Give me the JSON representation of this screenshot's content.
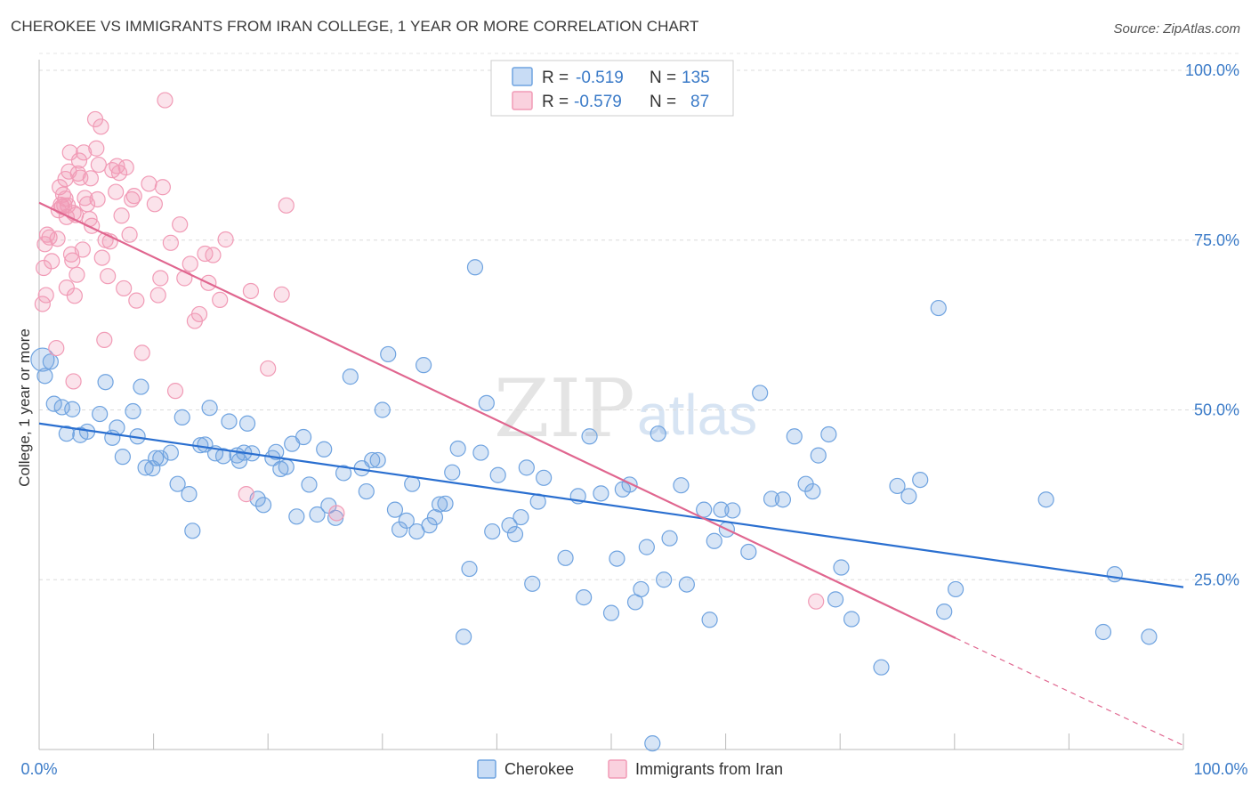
{
  "title": "CHEROKEE VS IMMIGRANTS FROM IRAN COLLEGE, 1 YEAR OR MORE CORRELATION CHART",
  "source": "Source: ZipAtlas.com",
  "watermark": {
    "zip": "ZIP",
    "atlas": "atlas"
  },
  "legend_top": [
    {
      "r_label": "R =",
      "r_value": "-0.519",
      "n_label": "N =",
      "n_value": "135"
    },
    {
      "r_label": "R =",
      "r_value": "-0.579",
      "n_label": "N =",
      "n_value": "87"
    }
  ],
  "legend_bottom": [
    "Cherokee",
    "Immigrants from Iran"
  ],
  "colors": {
    "cherokee": "#6fa3e0",
    "cherokee_line": "#2a6fd0",
    "iran": "#f19bb6",
    "iran_line": "#e0668f",
    "tick": "#3b7bc8"
  },
  "chart_data": {
    "type": "scatter",
    "title": "CHEROKEE VS IMMIGRANTS FROM IRAN COLLEGE, 1 YEAR OR MORE CORRELATION CHART",
    "xlabel": "",
    "ylabel": "College, 1 year or more",
    "xlim": [
      0,
      100
    ],
    "ylim": [
      0,
      100
    ],
    "x_tick_labels": [
      "0.0%",
      "100.0%"
    ],
    "y_ticks": [
      25,
      50,
      75,
      100
    ],
    "y_tick_labels": [
      "25.0%",
      "50.0%",
      "75.0%",
      "100.0%"
    ],
    "grid": true,
    "legend_position": "top-center",
    "series": [
      {
        "name": "Cherokee",
        "r": -0.519,
        "n": 135,
        "trend": {
          "x": [
            0,
            100
          ],
          "y": [
            48.0,
            23.9
          ]
        },
        "points": [
          [
            0.3,
            57.4
          ],
          [
            0.5,
            55
          ],
          [
            1.3,
            50.9
          ],
          [
            2,
            50.4
          ],
          [
            2.9,
            50.1
          ],
          [
            2.4,
            46.5
          ],
          [
            3.6,
            46.3
          ],
          [
            4.2,
            46.8
          ],
          [
            5.3,
            49.4
          ],
          [
            5.8,
            54.1
          ],
          [
            6.4,
            45.9
          ],
          [
            6.8,
            47.4
          ],
          [
            7.3,
            43.1
          ],
          [
            8.2,
            49.8
          ],
          [
            8.6,
            46.1
          ],
          [
            8.9,
            53.4
          ],
          [
            9.3,
            41.5
          ],
          [
            9.9,
            41.4
          ],
          [
            10.2,
            42.9
          ],
          [
            10.6,
            42.9
          ],
          [
            11.5,
            43.7
          ],
          [
            12.1,
            39.1
          ],
          [
            12.5,
            48.9
          ],
          [
            13.1,
            37.6
          ],
          [
            13.4,
            32.2
          ],
          [
            14.1,
            44.8
          ],
          [
            14.5,
            44.9
          ],
          [
            14.9,
            50.3
          ],
          [
            15.4,
            43.6
          ],
          [
            16.1,
            43.2
          ],
          [
            16.6,
            48.3
          ],
          [
            17.3,
            43.3
          ],
          [
            17.5,
            42.5
          ],
          [
            17.9,
            43.7
          ],
          [
            18.2,
            48
          ],
          [
            18.6,
            43.6
          ],
          [
            19.1,
            36.9
          ],
          [
            19.6,
            36
          ],
          [
            20.4,
            42.9
          ],
          [
            20.7,
            43.8
          ],
          [
            21.1,
            41.3
          ],
          [
            21.6,
            41.6
          ],
          [
            22.1,
            45
          ],
          [
            22.5,
            34.3
          ],
          [
            23.1,
            46
          ],
          [
            23.6,
            39
          ],
          [
            24.3,
            34.6
          ],
          [
            24.9,
            44.2
          ],
          [
            25.3,
            35.9
          ],
          [
            25.9,
            34.1
          ],
          [
            26.6,
            40.7
          ],
          [
            27.2,
            54.9
          ],
          [
            28.2,
            41.4
          ],
          [
            28.6,
            38
          ],
          [
            29.1,
            42.6
          ],
          [
            29.6,
            42.6
          ],
          [
            30,
            50
          ],
          [
            30.5,
            58.2
          ],
          [
            31.1,
            35.3
          ],
          [
            31.5,
            32.4
          ],
          [
            32.1,
            33.7
          ],
          [
            32.6,
            39.1
          ],
          [
            33,
            32.1
          ],
          [
            33.6,
            56.6
          ],
          [
            34.1,
            33
          ],
          [
            34.6,
            34.2
          ],
          [
            35,
            36.1
          ],
          [
            35.5,
            36.2
          ],
          [
            36.1,
            40.8
          ],
          [
            36.6,
            44.3
          ],
          [
            37.1,
            16.6
          ],
          [
            37.6,
            26.6
          ],
          [
            38.1,
            71
          ],
          [
            38.6,
            43.7
          ],
          [
            39.1,
            51
          ],
          [
            39.6,
            32.1
          ],
          [
            40.1,
            40.4
          ],
          [
            41.1,
            33
          ],
          [
            41.6,
            31.7
          ],
          [
            42.1,
            34.2
          ],
          [
            42.6,
            41.5
          ],
          [
            43.1,
            24.4
          ],
          [
            43.6,
            36.5
          ],
          [
            44.1,
            40
          ],
          [
            46,
            28.2
          ],
          [
            47.1,
            37.3
          ],
          [
            47.6,
            22.4
          ],
          [
            48.1,
            46.1
          ],
          [
            49.1,
            37.7
          ],
          [
            50,
            20.1
          ],
          [
            50.5,
            28.1
          ],
          [
            51,
            38.3
          ],
          [
            51.6,
            39
          ],
          [
            52.1,
            21.7
          ],
          [
            52.6,
            23.6
          ],
          [
            53.1,
            29.8
          ],
          [
            53.6,
            0.9
          ],
          [
            54.1,
            46.5
          ],
          [
            54.6,
            25
          ],
          [
            55.1,
            31.1
          ],
          [
            56.1,
            38.9
          ],
          [
            56.6,
            24.3
          ],
          [
            58.1,
            35.3
          ],
          [
            58.6,
            19.1
          ],
          [
            59,
            30.7
          ],
          [
            59.6,
            35.3
          ],
          [
            60.1,
            32.4
          ],
          [
            60.6,
            35.2
          ],
          [
            62,
            29.1
          ],
          [
            63,
            52.5
          ],
          [
            64,
            36.9
          ],
          [
            65,
            36.8
          ],
          [
            66,
            46.1
          ],
          [
            67,
            39.1
          ],
          [
            67.6,
            38
          ],
          [
            68.1,
            43.3
          ],
          [
            69,
            46.4
          ],
          [
            69.6,
            22.1
          ],
          [
            70.1,
            26.8
          ],
          [
            71,
            19.2
          ],
          [
            73.6,
            12.1
          ],
          [
            75,
            38.8
          ],
          [
            76,
            37.3
          ],
          [
            77,
            39.7
          ],
          [
            78.6,
            65
          ],
          [
            79.1,
            20.3
          ],
          [
            80.1,
            23.6
          ],
          [
            88,
            36.8
          ],
          [
            93,
            17.3
          ],
          [
            94,
            25.8
          ],
          [
            97,
            16.6
          ],
          [
            1,
            57.1
          ]
        ]
      },
      {
        "name": "Immigrants from Iran",
        "r": -0.579,
        "n": 87,
        "trend": {
          "x": [
            0,
            80.1
          ],
          "y": [
            80.5,
            16.4
          ]
        },
        "trend_dashed": {
          "x": [
            80.1,
            100
          ],
          "y": [
            16.4,
            0.6
          ]
        },
        "points": [
          [
            0.3,
            65.6
          ],
          [
            0.4,
            70.9
          ],
          [
            0.5,
            74.4
          ],
          [
            0.6,
            66.9
          ],
          [
            0.7,
            75.8
          ],
          [
            0.9,
            75.4
          ],
          [
            1.1,
            71.9
          ],
          [
            1.5,
            59.1
          ],
          [
            1.6,
            75.2
          ],
          [
            1.7,
            79.4
          ],
          [
            1.8,
            82.8
          ],
          [
            2,
            79.9
          ],
          [
            2.1,
            81.7
          ],
          [
            2.2,
            80.1
          ],
          [
            2.3,
            84
          ],
          [
            2.4,
            68
          ],
          [
            2.5,
            80.1
          ],
          [
            2.6,
            85.1
          ],
          [
            2.7,
            87.9
          ],
          [
            2.8,
            72.9
          ],
          [
            2.9,
            72
          ],
          [
            3,
            54.2
          ],
          [
            3.1,
            66.8
          ],
          [
            3.2,
            78.7
          ],
          [
            3.3,
            69.9
          ],
          [
            3.4,
            84.8
          ],
          [
            3.5,
            86.7
          ],
          [
            3.6,
            84.2
          ],
          [
            3.8,
            73.6
          ],
          [
            3.9,
            87.9
          ],
          [
            4,
            81.2
          ],
          [
            4.2,
            80.3
          ],
          [
            4.4,
            78.1
          ],
          [
            4.5,
            84.1
          ],
          [
            4.6,
            77.1
          ],
          [
            4.9,
            92.8
          ],
          [
            5,
            88.5
          ],
          [
            5.1,
            81
          ],
          [
            5.2,
            86.1
          ],
          [
            5.4,
            91.7
          ],
          [
            5.5,
            72.4
          ],
          [
            5.7,
            60.3
          ],
          [
            5.8,
            75
          ],
          [
            6,
            69.7
          ],
          [
            6.2,
            74.8
          ],
          [
            6.4,
            85.3
          ],
          [
            6.7,
            82.1
          ],
          [
            6.8,
            85.9
          ],
          [
            7,
            84.9
          ],
          [
            7.2,
            78.6
          ],
          [
            7.4,
            67.9
          ],
          [
            7.6,
            85.7
          ],
          [
            7.9,
            75.8
          ],
          [
            8.1,
            81
          ],
          [
            8.3,
            81.5
          ],
          [
            8.5,
            66.1
          ],
          [
            9,
            58.4
          ],
          [
            9.6,
            83.3
          ],
          [
            10.1,
            80.3
          ],
          [
            10.4,
            66.9
          ],
          [
            10.6,
            69.4
          ],
          [
            10.8,
            82.8
          ],
          [
            11,
            95.6
          ],
          [
            11.5,
            74.6
          ],
          [
            11.9,
            52.8
          ],
          [
            12.3,
            77.3
          ],
          [
            12.7,
            69.4
          ],
          [
            13.2,
            71.5
          ],
          [
            13.6,
            63.1
          ],
          [
            14,
            64.1
          ],
          [
            14.5,
            73
          ],
          [
            14.8,
            68.7
          ],
          [
            15.2,
            72.8
          ],
          [
            15.8,
            66.2
          ],
          [
            16.3,
            75.1
          ],
          [
            18.1,
            37.6
          ],
          [
            18.5,
            67.5
          ],
          [
            20,
            56.1
          ],
          [
            21.2,
            67
          ],
          [
            21.6,
            80.1
          ],
          [
            26,
            34.8
          ],
          [
            67.9,
            21.8
          ],
          [
            1.9,
            80.2
          ],
          [
            2.3,
            81.1
          ],
          [
            3,
            79
          ],
          [
            2.4,
            78.4
          ]
        ]
      }
    ]
  }
}
